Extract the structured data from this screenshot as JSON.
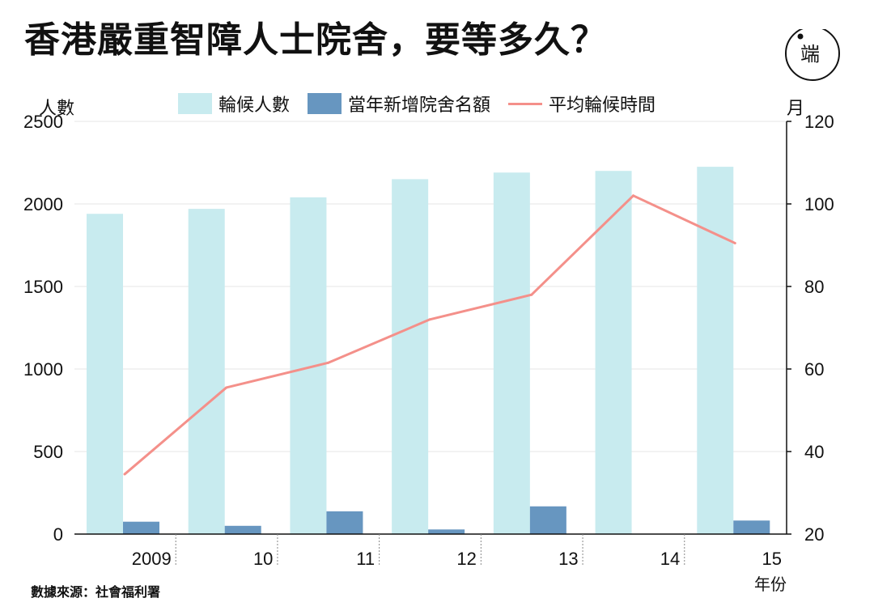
{
  "title": "香港嚴重智障人士院舍，要等多久？",
  "logo": "端",
  "left_axis_label": "人數",
  "right_axis_label": "月",
  "x_axis_label": "年份",
  "source": "數據來源：社會福利署",
  "colors": {
    "waiting": "#c8ebef",
    "new_places": "#6796c0",
    "avg_wait": "#f4908a"
  },
  "chart_data": {
    "type": "bar",
    "categories": [
      "2009",
      "10",
      "11",
      "12",
      "13",
      "14",
      "15"
    ],
    "series": [
      {
        "name": "輪候人數",
        "type": "bar",
        "axis": "left",
        "values": [
          1940,
          1970,
          2040,
          2150,
          2190,
          2200,
          2225
        ]
      },
      {
        "name": "當年新增院舍名額",
        "type": "bar",
        "axis": "left",
        "values": [
          75,
          50,
          138,
          28,
          168,
          0,
          82
        ]
      },
      {
        "name": "平均輪候時間",
        "type": "line",
        "axis": "right",
        "values": [
          34.5,
          55.5,
          61.5,
          72,
          78,
          102,
          90.5
        ]
      }
    ],
    "y_left": {
      "min": 0,
      "max": 2500,
      "ticks": [
        0,
        500,
        1000,
        1500,
        2000,
        2500
      ]
    },
    "y_right": {
      "min": 20,
      "max": 120,
      "ticks": [
        20,
        40,
        60,
        80,
        100,
        120
      ]
    },
    "grid": true,
    "legend_position": "top"
  }
}
